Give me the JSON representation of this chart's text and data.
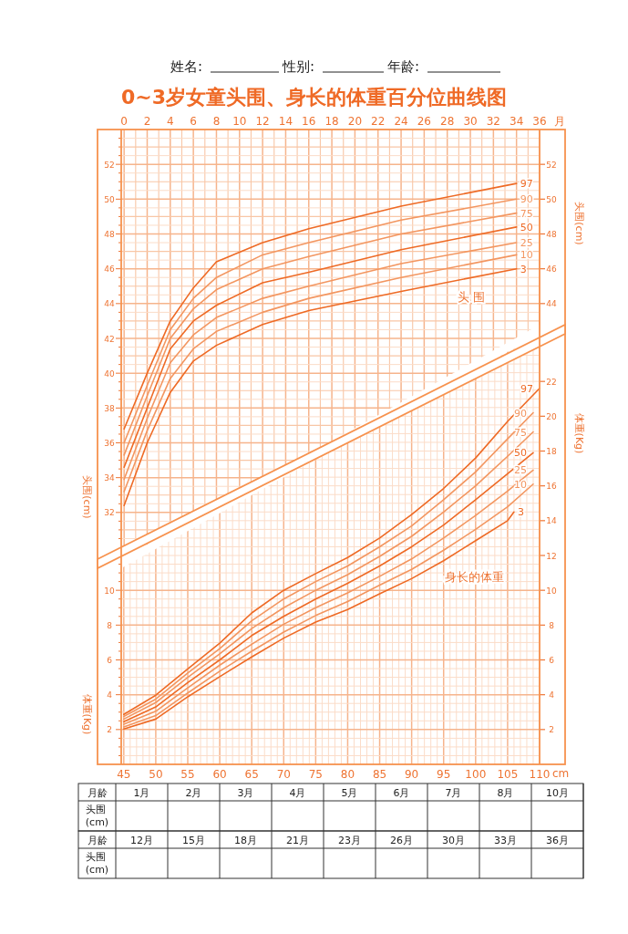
{
  "chart_data": [
    {
      "type": "line",
      "title": "0~3岁女童头围、身长的体重百分位曲线图",
      "xlabel": "月",
      "ylabel": "头围(cm)",
      "y2label": "头围(cm)",
      "xlim": [
        -0.25,
        36
      ],
      "xticks": [
        0,
        {
          "value": 1,
          "label": null
        },
        2,
        {
          "value": 3,
          "label": null
        },
        4,
        {
          "value": 5,
          "label": null
        },
        6,
        {
          "value": 7,
          "label": null
        },
        8,
        {
          "value": 9,
          "label": null
        },
        10,
        {
          "value": 11,
          "label": null
        },
        12,
        {
          "value": 13,
          "label": null
        },
        14,
        {
          "value": 15,
          "label": null
        },
        16,
        {
          "value": 17,
          "label": null
        },
        18,
        {
          "value": 19,
          "label": null
        },
        20,
        {
          "value": 21,
          "label": null
        },
        22,
        {
          "value": 23,
          "label": null
        },
        24,
        {
          "value": 25,
          "label": null
        },
        26,
        {
          "value": 27,
          "label": null
        },
        28,
        {
          "value": 29,
          "label": null
        },
        30,
        {
          "value": 31,
          "label": null
        },
        32,
        {
          "value": 33,
          "label": null
        },
        34,
        {
          "value": 35,
          "label": null
        },
        36
      ],
      "ylim": [
        30,
        54
      ],
      "yticks": [
        {
          "value": 30.5,
          "label": null
        },
        {
          "value": 31,
          "label": null
        },
        {
          "value": 31.5,
          "label": null
        },
        32,
        {
          "value": 32.5,
          "label": null
        },
        {
          "value": 33,
          "label": null
        },
        {
          "value": 33.5,
          "label": null
        },
        34,
        {
          "value": 34.5,
          "label": null
        },
        {
          "value": 35,
          "label": null
        },
        {
          "value": 35.5,
          "label": null
        },
        36,
        {
          "value": 36.5,
          "label": null
        },
        {
          "value": 37,
          "label": null
        },
        {
          "value": 37.5,
          "label": null
        },
        38,
        {
          "value": 38.5,
          "label": null
        },
        {
          "value": 39,
          "label": null
        },
        {
          "value": 39.5,
          "label": null
        },
        40,
        {
          "value": 40.5,
          "label": null
        },
        {
          "value": 41,
          "label": null
        },
        {
          "value": 41.5,
          "label": null
        },
        42,
        {
          "value": 42.5,
          "label": null
        },
        {
          "value": 43,
          "label": null
        },
        {
          "value": 43.5,
          "label": null
        },
        44,
        {
          "value": 44.5,
          "label": null
        },
        {
          "value": 45,
          "label": null
        },
        {
          "value": 45.5,
          "label": null
        },
        46,
        {
          "value": 46.5,
          "label": null
        },
        {
          "value": 47,
          "label": null
        },
        {
          "value": 47.5,
          "label": null
        },
        48,
        {
          "value": 48.5,
          "label": null
        },
        {
          "value": 49,
          "label": null
        },
        {
          "value": 49.5,
          "label": null
        },
        50,
        {
          "value": 50.5,
          "label": null
        },
        {
          "value": 51,
          "label": null
        },
        {
          "value": 51.5,
          "label": null
        },
        52,
        {
          "value": 52.5,
          "label": null
        },
        {
          "value": 53,
          "label": null
        },
        {
          "value": 53.5,
          "label": null
        }
      ],
      "y2lim": [
        30,
        54
      ],
      "y2ticks": [
        44,
        46,
        48,
        50,
        52
      ],
      "grid": true,
      "annotations": [
        "姓名:",
        "性别:",
        "年龄:",
        "头 围"
      ],
      "series": [
        {
          "name": "97",
          "color": "#ee6a25",
          "x": [
            0,
            2,
            4,
            6,
            8,
            12,
            16,
            24,
            34
          ],
          "values": [
            36.8,
            40.0,
            43.0,
            44.9,
            46.4,
            47.5,
            48.3,
            49.6,
            50.9
          ]
        },
        {
          "name": "90",
          "color": "#f39660",
          "x": [
            0,
            2,
            4,
            6,
            8,
            12,
            16,
            24,
            34
          ],
          "values": [
            36.0,
            39.3,
            42.5,
            44.3,
            45.5,
            46.8,
            47.5,
            48.8,
            50.0
          ]
        },
        {
          "name": "75",
          "color": "#f39660",
          "x": [
            0,
            2,
            4,
            6,
            8,
            12,
            16,
            24,
            34
          ],
          "values": [
            35.3,
            38.7,
            42.0,
            43.7,
            44.8,
            46.0,
            46.7,
            48.0,
            49.2
          ]
        },
        {
          "name": "50",
          "color": "#ee6a25",
          "x": [
            0,
            2,
            4,
            6,
            8,
            12,
            16,
            24,
            34
          ],
          "values": [
            34.6,
            38.0,
            41.4,
            43.0,
            43.9,
            45.2,
            45.8,
            47.1,
            48.4
          ]
        },
        {
          "name": "25",
          "color": "#f39660",
          "x": [
            0,
            2,
            4,
            6,
            8,
            12,
            16,
            24,
            34
          ],
          "values": [
            33.9,
            37.4,
            40.6,
            42.2,
            43.2,
            44.3,
            45.0,
            46.3,
            47.5
          ]
        },
        {
          "name": "10",
          "color": "#f39660",
          "x": [
            0,
            2,
            4,
            6,
            8,
            12,
            16,
            24,
            34
          ],
          "values": [
            33.2,
            36.7,
            39.7,
            41.4,
            42.4,
            43.5,
            44.3,
            45.5,
            46.8
          ]
        },
        {
          "name": "3",
          "color": "#ee6a25",
          "x": [
            0,
            2,
            4,
            6,
            8,
            12,
            16,
            24,
            34
          ],
          "values": [
            32.4,
            36.0,
            38.9,
            40.7,
            41.6,
            42.8,
            43.6,
            44.7,
            46.0
          ]
        }
      ]
    },
    {
      "type": "line",
      "xlabel": "cm",
      "ylabel": "体重(Kg)",
      "y2label": "体重(Kg)",
      "xlim": [
        44.6,
        110
      ],
      "xticks": [
        45,
        {
          "value": 46,
          "label": null
        },
        {
          "value": 47,
          "label": null
        },
        {
          "value": 48,
          "label": null
        },
        {
          "value": 49,
          "label": null
        },
        50,
        {
          "value": 51,
          "label": null
        },
        {
          "value": 52,
          "label": null
        },
        {
          "value": 53,
          "label": null
        },
        {
          "value": 54,
          "label": null
        },
        55,
        {
          "value": 56,
          "label": null
        },
        {
          "value": 57,
          "label": null
        },
        {
          "value": 58,
          "label": null
        },
        {
          "value": 59,
          "label": null
        },
        60,
        {
          "value": 61,
          "label": null
        },
        {
          "value": 62,
          "label": null
        },
        {
          "value": 63,
          "label": null
        },
        {
          "value": 64,
          "label": null
        },
        65,
        {
          "value": 66,
          "label": null
        },
        {
          "value": 67,
          "label": null
        },
        {
          "value": 68,
          "label": null
        },
        {
          "value": 69,
          "label": null
        },
        70,
        {
          "value": 71,
          "label": null
        },
        {
          "value": 72,
          "label": null
        },
        {
          "value": 73,
          "label": null
        },
        {
          "value": 74,
          "label": null
        },
        75,
        {
          "value": 76,
          "label": null
        },
        {
          "value": 77,
          "label": null
        },
        {
          "value": 78,
          "label": null
        },
        {
          "value": 79,
          "label": null
        },
        80,
        {
          "value": 81,
          "label": null
        },
        {
          "value": 82,
          "label": null
        },
        {
          "value": 83,
          "label": null
        },
        {
          "value": 84,
          "label": null
        },
        85,
        {
          "value": 86,
          "label": null
        },
        {
          "value": 87,
          "label": null
        },
        {
          "value": 88,
          "label": null
        },
        {
          "value": 89,
          "label": null
        },
        90,
        {
          "value": 91,
          "label": null
        },
        {
          "value": 92,
          "label": null
        },
        {
          "value": 93,
          "label": null
        },
        {
          "value": 94,
          "label": null
        },
        95,
        {
          "value": 96,
          "label": null
        },
        {
          "value": 97,
          "label": null
        },
        {
          "value": 98,
          "label": null
        },
        {
          "value": 99,
          "label": null
        },
        100,
        {
          "value": 101,
          "label": null
        },
        {
          "value": 102,
          "label": null
        },
        {
          "value": 103,
          "label": null
        },
        {
          "value": 104,
          "label": null
        },
        105,
        {
          "value": 106,
          "label": null
        },
        {
          "value": 107,
          "label": null
        },
        {
          "value": 108,
          "label": null
        },
        {
          "value": 109,
          "label": null
        },
        110
      ],
      "ylim": [
        0,
        24
      ],
      "yticks": [
        {
          "value": 0.5,
          "label": null
        },
        {
          "value": 1,
          "label": null
        },
        {
          "value": 1.5,
          "label": null
        },
        2,
        {
          "value": 2.5,
          "label": null
        },
        {
          "value": 3,
          "label": null
        },
        {
          "value": 3.5,
          "label": null
        },
        4,
        {
          "value": 4.5,
          "label": null
        },
        {
          "value": 5,
          "label": null
        },
        {
          "value": 5.5,
          "label": null
        },
        6,
        {
          "value": 6.5,
          "label": null
        },
        {
          "value": 7,
          "label": null
        },
        {
          "value": 7.5,
          "label": null
        },
        8,
        {
          "value": 8.5,
          "label": null
        },
        {
          "value": 9,
          "label": null
        },
        {
          "value": 9.5,
          "label": null
        },
        10,
        {
          "value": 10.5,
          "label": null
        },
        {
          "value": 11,
          "label": null
        },
        {
          "value": 11.5,
          "label": null
        },
        {
          "value": 12,
          "label": null
        },
        {
          "value": 12.5,
          "label": null
        },
        {
          "value": 13,
          "label": null
        },
        {
          "value": 13.5,
          "label": null
        },
        {
          "value": 14,
          "label": null
        },
        {
          "value": 14.5,
          "label": null
        },
        {
          "value": 15,
          "label": null
        },
        {
          "value": 15.5,
          "label": null
        },
        {
          "value": 16,
          "label": null
        },
        {
          "value": 16.5,
          "label": null
        },
        {
          "value": 17,
          "label": null
        },
        {
          "value": 17.5,
          "label": null
        },
        {
          "value": 18,
          "label": null
        },
        {
          "value": 18.5,
          "label": null
        },
        {
          "value": 19,
          "label": null
        },
        {
          "value": 19.5,
          "label": null
        },
        {
          "value": 20,
          "label": null
        },
        {
          "value": 20.5,
          "label": null
        },
        {
          "value": 21,
          "label": null
        },
        {
          "value": 21.5,
          "label": null
        },
        {
          "value": 22,
          "label": null
        },
        {
          "value": 22.5,
          "label": null
        },
        {
          "value": 23,
          "label": null
        },
        {
          "value": 23.5,
          "label": null
        }
      ],
      "y2lim": [
        0,
        24
      ],
      "y2ticks": [
        2,
        4,
        6,
        8,
        10,
        12,
        14,
        16,
        18,
        20,
        22
      ],
      "grid": true,
      "annotations": [
        "身长的体重",
        "月龄",
        "1月",
        "2月",
        "3月",
        "4月",
        "5月",
        "6月",
        "7月",
        "8月",
        "10月",
        "头围 (cm)",
        "月龄",
        "12月",
        "15月",
        "18月",
        "21月",
        "23月",
        "26月",
        "30月",
        "33月",
        "36月",
        "头围 (cm)"
      ],
      "series": [
        {
          "name": "97",
          "color": "#ee6a25",
          "x": [
            45,
            50,
            55,
            60,
            65,
            70,
            75,
            80,
            85,
            90,
            95,
            100,
            105,
            110
          ],
          "values": [
            2.87,
            3.97,
            5.48,
            6.96,
            8.7,
            10.0,
            10.96,
            11.88,
            13.0,
            14.35,
            15.85,
            17.6,
            19.7,
            21.6
          ]
        },
        {
          "name": "90",
          "color": "#f39660",
          "x": [
            45,
            50,
            55,
            60,
            65,
            70,
            75,
            80,
            85,
            90,
            95,
            100,
            105,
            109
          ],
          "values": [
            2.75,
            3.75,
            5.25,
            6.65,
            8.25,
            9.5,
            10.5,
            11.4,
            12.5,
            13.7,
            15.2,
            16.8,
            18.7,
            20.2
          ]
        },
        {
          "name": "75",
          "color": "#f39660",
          "x": [
            45,
            50,
            55,
            60,
            65,
            70,
            75,
            80,
            85,
            90,
            95,
            100,
            105,
            109
          ],
          "values": [
            2.6,
            3.55,
            5.0,
            6.35,
            7.8,
            9.0,
            10.0,
            10.9,
            11.95,
            13.1,
            14.5,
            16.0,
            17.7,
            19.1
          ]
        },
        {
          "name": "50",
          "color": "#ee6a25",
          "x": [
            45,
            50,
            55,
            60,
            65,
            70,
            75,
            80,
            85,
            90,
            95,
            100,
            105,
            109
          ],
          "values": [
            2.45,
            3.3,
            4.7,
            6.0,
            7.4,
            8.5,
            9.5,
            10.4,
            11.4,
            12.5,
            13.75,
            15.2,
            16.7,
            17.9
          ]
        },
        {
          "name": "25",
          "color": "#f39660",
          "x": [
            45,
            50,
            55,
            60,
            65,
            70,
            75,
            80,
            85,
            90,
            95,
            100,
            105,
            109
          ],
          "values": [
            2.3,
            3.05,
            4.4,
            5.7,
            6.9,
            8.05,
            9.0,
            9.85,
            10.8,
            11.8,
            13.0,
            14.3,
            15.7,
            16.9
          ]
        },
        {
          "name": "10",
          "color": "#f39660",
          "x": [
            45,
            50,
            55,
            60,
            65,
            70,
            75,
            80,
            85,
            90,
            95,
            100,
            105,
            109
          ],
          "values": [
            2.15,
            2.8,
            4.1,
            5.35,
            6.5,
            7.6,
            8.55,
            9.35,
            10.3,
            11.2,
            12.3,
            13.5,
            14.8,
            16.1
          ]
        },
        {
          "name": "3",
          "color": "#ee6a25",
          "x": [
            45,
            50,
            55,
            60,
            65,
            70,
            75,
            80,
            85,
            90,
            95,
            100,
            105,
            106
          ],
          "values": [
            2.03,
            2.6,
            3.88,
            5.04,
            6.17,
            7.25,
            8.17,
            8.9,
            9.8,
            10.67,
            11.7,
            12.85,
            14.0,
            14.5
          ]
        }
      ]
    }
  ]
}
